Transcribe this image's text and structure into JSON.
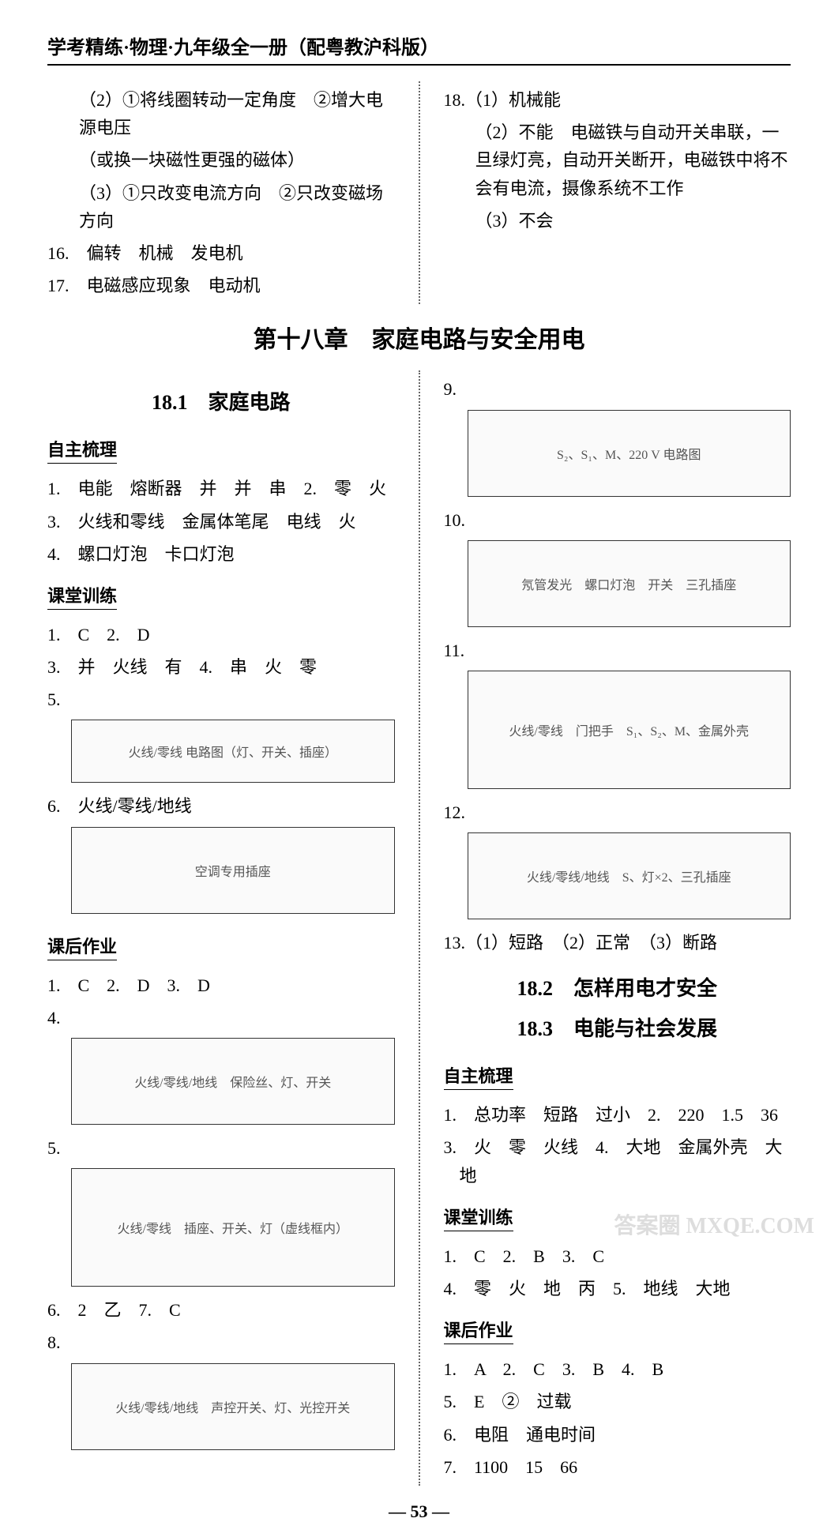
{
  "header": "学考精练·物理·九年级全一册（配粤教沪科版）",
  "top": {
    "left": {
      "l1": "（2）①将线圈转动一定角度　②增大电源电压",
      "l2": "（或换一块磁性更强的磁体）",
      "l3": "（3）①只改变电流方向　②只改变磁场方向",
      "l4": "16.　偏转　机械　发电机",
      "l5": "17.　电磁感应现象　电动机"
    },
    "right": {
      "l1": "18.（1）机械能",
      "l2": "（2）不能　电磁铁与自动开关串联，一旦绿灯亮，自动开关断开，电磁铁中将不会有电流，摄像系统不工作",
      "l3": "（3）不会"
    }
  },
  "chapter": "第十八章　家庭电路与安全用电",
  "s18_1": {
    "title": "18.1　家庭电路",
    "zzsl": "自主梳理",
    "z1": "1.　电能　熔断器　并　并　串　2.　零　火",
    "z2": "3.　火线和零线　金属体笔尾　电线　火",
    "z3": "4.　螺口灯泡　卡口灯泡",
    "ktxl": "课堂训练",
    "k1": "1.　C　2.　D",
    "k2": "3.　并　火线　有　4.　串　火　零",
    "k3": "5.",
    "fig5": "火线/零线 电路图（灯、开关、插座）",
    "k4": "6.　火线/零线/地线",
    "fig6": "空调专用插座",
    "khzy": "课后作业",
    "h1": "1.　C　2.　D　3.　D",
    "h2": "4.",
    "fig_h4": "火线/零线/地线　保险丝、灯、开关",
    "h3": "5.",
    "fig_h5": "火线/零线　插座、开关、灯（虚线框内）",
    "h4": "6.　2　乙　7.　C",
    "h5": "8.",
    "fig_h8": "火线/零线/地线　声控开关、灯、光控开关",
    "right_q9": "9.",
    "fig_r9": "S₂、S₁、M、220 V 电路图",
    "right_q10": "10.",
    "fig_r10": "氖管发光　螺口灯泡　开关　三孔插座",
    "right_q11": "11.",
    "fig_r11": "火线/零线　门把手　S₁、S₂、M、金属外壳",
    "right_q12": "12.",
    "fig_r12": "火线/零线/地线　S、灯×2、三孔插座",
    "right_q13": "13.（1）短路　（2）正常　（3）断路"
  },
  "s18_2_3": {
    "title2": "18.2　怎样用电才安全",
    "title3": "18.3　电能与社会发展",
    "zzsl": "自主梳理",
    "z1": "1.　总功率　短路　过小　2.　220　1.5　36",
    "z2": "3.　火　零　火线　4.　大地　金属外壳　大地",
    "ktxl": "课堂训练",
    "k1": "1.　C　2.　B　3.　C",
    "k2": "4.　零　火　地　丙　5.　地线　大地",
    "khzy": "课后作业",
    "h1": "1.　A　2.　C　3.　B　4.　B",
    "h2": "5.　E　②　过载",
    "h3": "6.　电阻　通电时间",
    "h4": "7.　1100　15　66"
  },
  "page_num": "— 53 —",
  "watermark": "答案圈\nMXQE.COM"
}
